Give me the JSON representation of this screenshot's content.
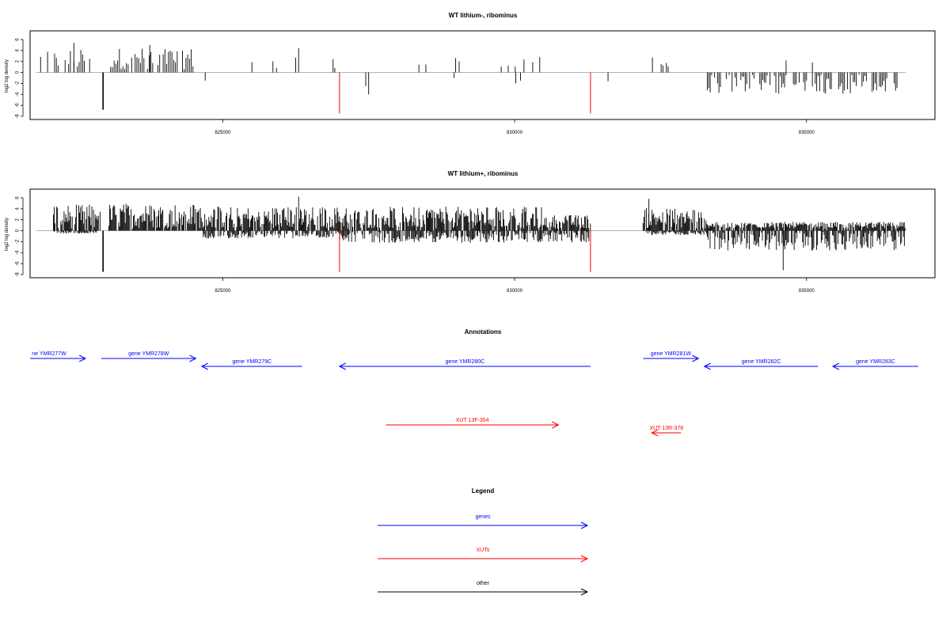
{
  "colors": {
    "gene": "#0000ff",
    "xut": "#ff0000",
    "other": "#000000",
    "bar": "#000000",
    "mark": "#ff0000",
    "axis": "#000000",
    "zero": "#999999"
  },
  "chart_data": [
    {
      "type": "bar",
      "title": "WT lithium-, ribominus",
      "ylabel": "log2 log density",
      "xlim": [
        821700,
        837200
      ],
      "ylim": [
        -8,
        7
      ],
      "yticks": [
        6,
        4,
        2,
        0,
        -2,
        -4,
        -6,
        -8
      ],
      "xticks": [
        825000,
        830000,
        835000
      ],
      "xtick_labels": [
        "825000",
        "830000",
        "835000"
      ],
      "red_marks_x": [
        827000,
        831300
      ],
      "red_marks_range": [
        0,
        -7.5
      ],
      "up": [
        [
          822300,
          822300,
          823200,
          823000,
          823650,
          824650,
          828500,
          828800,
          828150,
          826300
        ],
        [
          4.2,
          3.5,
          3.8,
          4.2,
          4.3,
          3.8,
          2.8,
          3.1,
          2.8,
          4.4
        ]
      ],
      "segments_pos": [
        [
          822450,
          0.8,
          4.0
        ],
        [
          822100,
          0.5,
          1.2
        ],
        [
          822440,
          0.5,
          5.0
        ],
        [
          825400,
          4.7,
          3.0
        ],
        [
          830100,
          4.5,
          2.5
        ],
        [
          832300,
          1.1,
          3.6
        ]
      ],
      "segments_neg": [
        [
          833300,
          2.6,
          3.5
        ],
        [
          825150,
          0.2,
          -1.2
        ]
      ],
      "spikes_neg_x": [
        822950,
        824700,
        827450,
        827500,
        828960,
        830020,
        830100,
        831600,
        835000,
        836500
      ],
      "spikes_neg_y": [
        -6.8,
        -1.5,
        -2.5,
        -4.0,
        -1.0,
        -2.0,
        -1.5,
        -1.6,
        -1.5,
        -2.0
      ]
    },
    {
      "type": "bar",
      "title": "WT lithium+, ribominus",
      "ylabel": "log2 log density",
      "xlim": [
        821700,
        837200
      ],
      "ylim": [
        -8,
        7
      ],
      "yticks": [
        6,
        4,
        2,
        0,
        -2,
        -4,
        -6,
        -8
      ],
      "xticks": [
        825000,
        830000,
        835000
      ],
      "xtick_labels": [
        "825000",
        "830000",
        "835000"
      ],
      "red_marks_x": [
        827000,
        831300
      ],
      "red_marks_range": [
        0,
        -7.5
      ],
      "dense_pos": [
        [
          822100,
          822900,
          4.4
        ],
        [
          823050,
          824650,
          4.6
        ],
        [
          824650,
          830500,
          4.0
        ],
        [
          830500,
          831300,
          2.5
        ],
        [
          832200,
          833300,
          3.8
        ],
        [
          833300,
          836700,
          1.2
        ]
      ],
      "dense_neg": [
        [
          822100,
          822850,
          0.3
        ],
        [
          824650,
          827000,
          1.2
        ],
        [
          827000,
          831300,
          2.0
        ],
        [
          832250,
          833300,
          0.6
        ],
        [
          833300,
          836700,
          3.4
        ]
      ],
      "spikes_neg_x": [
        822950,
        834600
      ],
      "spikes_neg_y": [
        -7.5,
        -7.2
      ],
      "spikes_pos_x": [
        826300,
        832300
      ],
      "spikes_pos_y": [
        6.2,
        5.8
      ]
    }
  ],
  "panels": {
    "top_title": "WT lithium-, ribominus",
    "mid_title": "WT lithium+, ribominus",
    "ylabel": "log2 log density",
    "yticks": [
      "6",
      "4",
      "2",
      "0",
      "-2",
      "-4",
      "-6",
      "-8"
    ],
    "xticks": [
      "825000",
      "830000",
      "835000"
    ]
  },
  "annotations": {
    "title": "Annotations",
    "genes": [
      {
        "label": "ne YMR277W",
        "start": 820900,
        "end": 822650,
        "dir": "right",
        "row": 0
      },
      {
        "label": "gene YMR278W",
        "start": 822920,
        "end": 824540,
        "dir": "right",
        "row": 0
      },
      {
        "label": "gene YMR279C",
        "start": 824640,
        "end": 826360,
        "dir": "left",
        "row": 1
      },
      {
        "label": "gene YMR280C",
        "start": 827000,
        "end": 831300,
        "dir": "left",
        "row": 1
      },
      {
        "label": "gene YMR281W",
        "start": 832200,
        "end": 833150,
        "dir": "right",
        "row": 0
      },
      {
        "label": "gene YMR282C",
        "start": 833250,
        "end": 835200,
        "dir": "left",
        "row": 1
      },
      {
        "label": "gene YMR283C",
        "start": 835450,
        "end": 837050,
        "dir": "left",
        "row": 1
      }
    ],
    "xuts": [
      {
        "label": "XUT 13F-354",
        "start": 827800,
        "end": 830750,
        "dir": "right"
      },
      {
        "label": "XUT 13R-378",
        "start": 832350,
        "end": 832850,
        "dir": "left"
      }
    ]
  },
  "legend": {
    "title": "Legend",
    "items": [
      {
        "label": "genes",
        "type": "gene"
      },
      {
        "label": "XUTs",
        "type": "xut"
      },
      {
        "label": "other",
        "type": "other"
      }
    ]
  }
}
